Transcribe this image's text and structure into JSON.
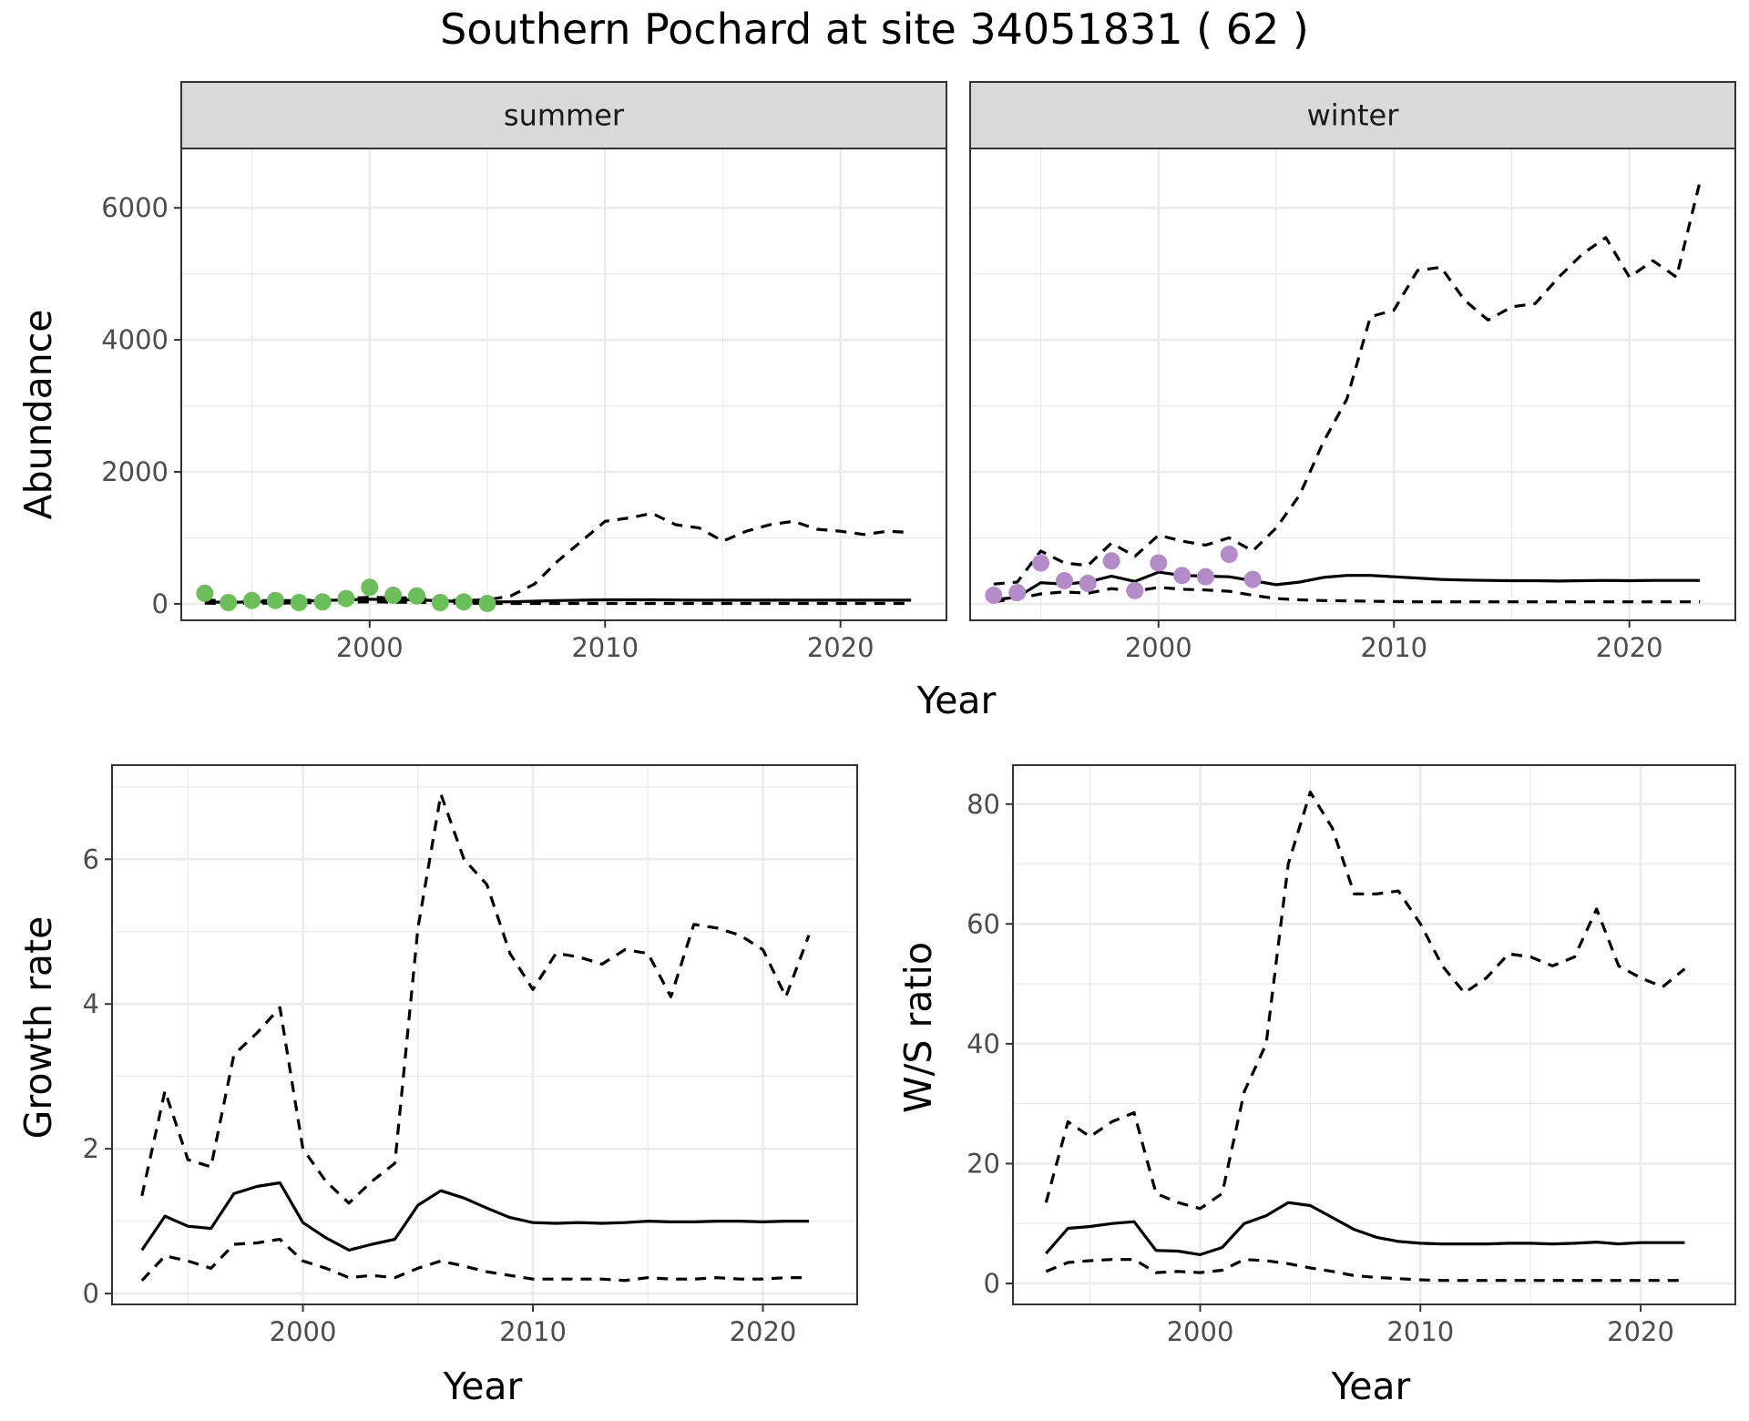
{
  "title": "Southern Pochard at site 34051831 ( 62 )",
  "colors": {
    "summer_points": "#6BBF59",
    "winter_points": "#B38BC8",
    "line": "#000000",
    "panel_border": "#333333",
    "grid": "#EBEBEB",
    "strip_fill": "#D9D9D9"
  },
  "chart_data": [
    {
      "type": "line",
      "panel": "summer",
      "strip": "summer",
      "xlabel": "Year",
      "ylabel": "Abundance",
      "xlim": [
        1992,
        2024.5
      ],
      "ylim": [
        -250,
        6900
      ],
      "xticks": [
        2000,
        2010,
        2020
      ],
      "yticks": [
        0,
        2000,
        4000,
        6000
      ],
      "x": [
        1993,
        1994,
        1995,
        1996,
        1997,
        1998,
        1999,
        2000,
        2001,
        2002,
        2003,
        2004,
        2005,
        2006,
        2007,
        2008,
        2009,
        2010,
        2011,
        2012,
        2013,
        2014,
        2015,
        2016,
        2017,
        2018,
        2019,
        2020,
        2021,
        2022,
        2023
      ],
      "series": [
        {
          "role": "upper",
          "style": "dashed",
          "values": [
            60,
            40,
            50,
            50,
            50,
            60,
            80,
            100,
            90,
            90,
            60,
            50,
            60,
            120,
            300,
            650,
            950,
            1250,
            1300,
            1370,
            1200,
            1150,
            950,
            1100,
            1200,
            1250,
            1130,
            1100,
            1050,
            1100,
            1080
          ]
        },
        {
          "role": "estimate",
          "style": "solid",
          "values": [
            30,
            20,
            30,
            35,
            40,
            50,
            60,
            70,
            60,
            60,
            45,
            35,
            30,
            30,
            40,
            50,
            55,
            60,
            60,
            60,
            58,
            55,
            55,
            55,
            55,
            55,
            55,
            55,
            55,
            55,
            55
          ]
        },
        {
          "role": "lower",
          "style": "dashed",
          "values": [
            10,
            5,
            10,
            10,
            15,
            20,
            25,
            30,
            25,
            25,
            15,
            10,
            5,
            5,
            5,
            5,
            5,
            5,
            5,
            5,
            5,
            5,
            5,
            5,
            5,
            5,
            5,
            5,
            5,
            5,
            5
          ]
        }
      ],
      "points": {
        "x": [
          1993,
          1994,
          1995,
          1996,
          1997,
          1998,
          1999,
          2000,
          2001,
          2002,
          2003,
          2004,
          2005
        ],
        "y": [
          160,
          20,
          50,
          50,
          20,
          30,
          80,
          250,
          130,
          120,
          20,
          30,
          5
        ]
      }
    },
    {
      "type": "line",
      "panel": "winter",
      "strip": "winter",
      "xlabel": "Year",
      "ylabel": "",
      "xlim": [
        1992,
        2024.5
      ],
      "ylim": [
        -250,
        6900
      ],
      "xticks": [
        2000,
        2010,
        2020
      ],
      "yticks": [
        0,
        2000,
        4000,
        6000
      ],
      "x": [
        1993,
        1994,
        1995,
        1996,
        1997,
        1998,
        1999,
        2000,
        2001,
        2002,
        2003,
        2004,
        2005,
        2006,
        2007,
        2008,
        2009,
        2010,
        2011,
        2012,
        2013,
        2014,
        2015,
        2016,
        2017,
        2018,
        2019,
        2020,
        2021,
        2022,
        2023
      ],
      "series": [
        {
          "role": "upper",
          "style": "dashed",
          "values": [
            300,
            330,
            800,
            620,
            580,
            920,
            720,
            1040,
            950,
            890,
            1000,
            800,
            1150,
            1650,
            2450,
            3100,
            4350,
            4450,
            5050,
            5100,
            4600,
            4300,
            4500,
            4550,
            4950,
            5300,
            5550,
            4950,
            5200,
            4950,
            6400
          ]
        },
        {
          "role": "estimate",
          "style": "solid",
          "values": [
            60,
            100,
            320,
            300,
            330,
            420,
            340,
            480,
            430,
            420,
            410,
            350,
            290,
            330,
            400,
            430,
            430,
            410,
            390,
            370,
            360,
            355,
            350,
            350,
            345,
            350,
            355,
            350,
            355,
            355,
            355
          ]
        },
        {
          "role": "lower",
          "style": "dashed",
          "values": [
            30,
            80,
            150,
            180,
            160,
            230,
            190,
            250,
            220,
            210,
            190,
            130,
            80,
            60,
            50,
            45,
            40,
            35,
            30,
            30,
            30,
            30,
            30,
            30,
            30,
            30,
            30,
            30,
            30,
            30,
            30
          ]
        }
      ],
      "points": {
        "x": [
          1993,
          1994,
          1995,
          1996,
          1997,
          1998,
          1999,
          2000,
          2001,
          2002,
          2003,
          2004
        ],
        "y": [
          130,
          170,
          620,
          350,
          310,
          650,
          200,
          620,
          430,
          410,
          750,
          370
        ]
      }
    },
    {
      "type": "line",
      "panel": "growth",
      "xlabel": "Year",
      "ylabel": "Growth rate",
      "xlim": [
        1991.7,
        2024.1
      ],
      "ylim": [
        -0.15,
        7.3
      ],
      "xticks": [
        2000,
        2010,
        2020
      ],
      "yticks": [
        0,
        2,
        4,
        6
      ],
      "x": [
        1993,
        1994,
        1995,
        1996,
        1997,
        1998,
        1999,
        2000,
        2001,
        2002,
        2003,
        2004,
        2005,
        2006,
        2007,
        2008,
        2009,
        2010,
        2011,
        2012,
        2013,
        2014,
        2015,
        2016,
        2017,
        2018,
        2019,
        2020,
        2021,
        2022
      ],
      "series": [
        {
          "role": "upper",
          "style": "dashed",
          "values": [
            1.35,
            2.8,
            1.85,
            1.75,
            3.3,
            3.6,
            3.95,
            2.0,
            1.55,
            1.25,
            1.55,
            1.8,
            5.05,
            6.9,
            6.0,
            5.65,
            4.7,
            4.2,
            4.7,
            4.65,
            4.55,
            4.75,
            4.7,
            4.1,
            5.1,
            5.05,
            4.95,
            4.75,
            4.1,
            4.95
          ]
        },
        {
          "role": "estimate",
          "style": "solid",
          "values": [
            0.6,
            1.07,
            0.93,
            0.9,
            1.38,
            1.48,
            1.53,
            0.98,
            0.77,
            0.6,
            0.68,
            0.75,
            1.22,
            1.42,
            1.32,
            1.18,
            1.05,
            0.98,
            0.97,
            0.98,
            0.97,
            0.98,
            1.0,
            0.99,
            0.99,
            1.0,
            1.0,
            0.99,
            1.0,
            1.0
          ]
        },
        {
          "role": "lower",
          "style": "dashed",
          "values": [
            0.18,
            0.52,
            0.45,
            0.35,
            0.68,
            0.7,
            0.75,
            0.45,
            0.35,
            0.22,
            0.25,
            0.22,
            0.35,
            0.45,
            0.38,
            0.3,
            0.25,
            0.2,
            0.2,
            0.2,
            0.2,
            0.18,
            0.22,
            0.2,
            0.2,
            0.22,
            0.2,
            0.2,
            0.22,
            0.22
          ]
        }
      ]
    },
    {
      "type": "line",
      "panel": "ratio",
      "xlabel": "Year",
      "ylabel": "W/S ratio",
      "xlim": [
        1991.5,
        2024.3
      ],
      "ylim": [
        -3.5,
        86.5
      ],
      "xticks": [
        2000,
        2010,
        2020
      ],
      "yticks": [
        0,
        20,
        40,
        60,
        80
      ],
      "x": [
        1993,
        1994,
        1995,
        1996,
        1997,
        1998,
        1999,
        2000,
        2001,
        2002,
        2003,
        2004,
        2005,
        2006,
        2007,
        2008,
        2009,
        2010,
        2011,
        2012,
        2013,
        2014,
        2015,
        2016,
        2017,
        2018,
        2019,
        2020,
        2021,
        2022
      ],
      "series": [
        {
          "role": "upper",
          "style": "dashed",
          "values": [
            13.5,
            27,
            24.5,
            27,
            28.5,
            15,
            13.5,
            12.5,
            15,
            32,
            40,
            70,
            82,
            76,
            65,
            65,
            65.5,
            60,
            53,
            48.5,
            51,
            55,
            54.5,
            53,
            54.5,
            62.5,
            53,
            51,
            49.5,
            52.5
          ]
        },
        {
          "role": "estimate",
          "style": "solid",
          "values": [
            5,
            9.2,
            9.5,
            10,
            10.3,
            5.5,
            5.4,
            4.8,
            6,
            10,
            11.3,
            13.5,
            13,
            11,
            9,
            7.7,
            7,
            6.7,
            6.6,
            6.6,
            6.6,
            6.7,
            6.7,
            6.6,
            6.7,
            6.9,
            6.6,
            6.8,
            6.8,
            6.8
          ]
        },
        {
          "role": "lower",
          "style": "dashed",
          "values": [
            2,
            3.5,
            3.8,
            4,
            4,
            1.8,
            2,
            1.8,
            2.2,
            4,
            3.8,
            3.3,
            2.6,
            2,
            1.3,
            1,
            0.8,
            0.6,
            0.5,
            0.5,
            0.5,
            0.5,
            0.5,
            0.5,
            0.5,
            0.5,
            0.5,
            0.5,
            0.5,
            0.5
          ]
        }
      ]
    }
  ]
}
